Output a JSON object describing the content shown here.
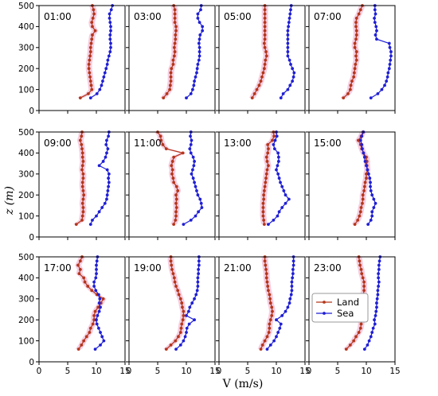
{
  "colors": {
    "land": "#b5361b",
    "sea": "#1f1fd6",
    "land_band": "#f2c6dd"
  },
  "chart_data": {
    "type": "line",
    "xlabel": "V (m/s)",
    "ylabel": "z (m)",
    "xlim": [
      0,
      15
    ],
    "ylim": [
      0,
      500
    ],
    "xticks": [
      0,
      5,
      10,
      15
    ],
    "yticks": [
      0,
      100,
      200,
      300,
      400,
      500
    ],
    "legend": {
      "placement": "inside panel 23:00, center-left",
      "entries": [
        "Land",
        "Sea"
      ]
    },
    "z": [
      60,
      80,
      100,
      120,
      140,
      160,
      180,
      200,
      220,
      240,
      260,
      280,
      300,
      320,
      340,
      360,
      380,
      400,
      420,
      440,
      460,
      480,
      500
    ],
    "panels": [
      {
        "time": "01:00",
        "land": [
          7.2,
          8.6,
          9.2,
          9.1,
          9.0,
          8.9,
          8.8,
          8.7,
          8.7,
          8.8,
          8.9,
          9.0,
          9.0,
          9.1,
          9.2,
          9.3,
          9.8,
          9.3,
          9.2,
          9.4,
          9.6,
          9.5,
          9.3
        ],
        "sea": [
          9.0,
          10.1,
          10.6,
          10.9,
          11.1,
          11.3,
          11.5,
          11.7,
          11.9,
          12.0,
          12.2,
          12.4,
          12.5,
          12.5,
          12.4,
          12.4,
          12.5,
          12.5,
          12.4,
          12.3,
          12.3,
          12.6,
          12.8
        ]
      },
      {
        "time": "03:00",
        "land": [
          6.0,
          6.6,
          7.1,
          7.2,
          7.3,
          7.3,
          7.3,
          7.4,
          7.7,
          7.7,
          7.9,
          8.0,
          7.9,
          8.0,
          8.1,
          8.1,
          8.2,
          8.2,
          8.0,
          8.0,
          8.0,
          8.0,
          7.8
        ],
        "sea": [
          10.0,
          10.8,
          11.1,
          11.3,
          11.4,
          11.6,
          11.8,
          11.9,
          12.0,
          12.2,
          12.3,
          12.3,
          12.3,
          12.2,
          12.3,
          12.4,
          12.8,
          12.8,
          12.3,
          12.0,
          12.0,
          12.5,
          12.6
        ]
      },
      {
        "time": "05:00",
        "land": [
          5.8,
          6.2,
          6.6,
          7.0,
          7.3,
          7.5,
          7.7,
          7.9,
          8.0,
          8.1,
          8.3,
          8.2,
          8.0,
          7.9,
          8.0,
          8.0,
          8.0,
          8.0,
          8.0,
          8.0,
          8.0,
          8.0,
          8.0
        ],
        "sea": [
          10.8,
          11.2,
          12.0,
          12.4,
          12.8,
          13.0,
          13.1,
          12.8,
          12.5,
          12.3,
          12.0,
          12.0,
          12.0,
          12.0,
          12.0,
          12.0,
          12.0,
          12.1,
          12.2,
          12.3,
          12.4,
          12.5,
          12.6
        ]
      },
      {
        "time": "07:00",
        "land": [
          6.0,
          6.8,
          7.2,
          7.3,
          7.5,
          7.8,
          7.9,
          8.0,
          8.1,
          8.3,
          8.2,
          8.3,
          8.0,
          8.0,
          8.2,
          8.3,
          8.3,
          8.2,
          8.2,
          8.3,
          8.7,
          9.0,
          9.3
        ],
        "sea": [
          10.8,
          12.0,
          12.7,
          13.2,
          13.5,
          13.7,
          13.8,
          14.0,
          14.1,
          14.2,
          14.3,
          14.3,
          14.1,
          14.0,
          11.8,
          11.6,
          11.8,
          11.7,
          11.5,
          11.4,
          11.6,
          11.5,
          11.5
        ]
      },
      {
        "time": "09:00",
        "land": [
          6.5,
          7.5,
          7.6,
          7.7,
          7.7,
          7.6,
          7.7,
          7.8,
          7.7,
          7.6,
          7.6,
          7.7,
          7.7,
          7.5,
          7.6,
          7.7,
          7.6,
          7.6,
          7.5,
          7.4,
          7.2,
          7.4,
          7.5
        ],
        "sea": [
          9.0,
          9.3,
          10.0,
          10.5,
          11.0,
          11.5,
          11.8,
          11.9,
          12.0,
          12.1,
          12.2,
          12.1,
          12.2,
          11.9,
          10.5,
          11.2,
          11.6,
          11.8,
          12.0,
          11.7,
          11.8,
          12.1,
          12.2
        ],
        "land_override": true
      },
      {
        "time": "11:00",
        "land": [
          7.8,
          8.1,
          8.2,
          8.2,
          8.3,
          8.2,
          8.3,
          8.2,
          8.5,
          8.3,
          7.8,
          7.7,
          7.5,
          7.6,
          7.4,
          7.6,
          7.8,
          9.4,
          6.5,
          5.9,
          5.6,
          5.5,
          5.0
        ],
        "sea": [
          9.5,
          10.8,
          11.6,
          12.1,
          12.7,
          12.6,
          12.4,
          12.0,
          11.8,
          11.6,
          11.4,
          11.2,
          10.9,
          11.1,
          11.3,
          11.4,
          11.2,
          10.8,
          10.6,
          10.8,
          10.9,
          10.7,
          10.8
        ]
      },
      {
        "time": "13:00",
        "land": [
          7.9,
          7.8,
          7.7,
          7.7,
          7.7,
          7.7,
          7.8,
          7.8,
          7.9,
          8.0,
          8.1,
          8.2,
          8.3,
          8.4,
          8.6,
          8.4,
          8.3,
          8.5,
          8.6,
          8.5,
          9.3,
          9.6,
          9.5
        ],
        "sea": [
          8.6,
          9.5,
          10.2,
          10.5,
          11.0,
          11.6,
          12.2,
          11.6,
          11.3,
          11.0,
          10.7,
          10.5,
          10.3,
          10.0,
          10.2,
          10.4,
          10.4,
          10.3,
          9.7,
          9.5,
          9.8,
          10.1,
          10.0
        ]
      },
      {
        "time": "15:00",
        "land": [
          8.0,
          8.5,
          8.8,
          9.0,
          9.1,
          9.3,
          9.4,
          9.4,
          9.6,
          9.7,
          9.8,
          10.0,
          10.0,
          10.2,
          10.1,
          10.1,
          10.0,
          9.5,
          9.2,
          9.0,
          8.6,
          9.1,
          9.4
        ],
        "sea": [
          10.3,
          10.8,
          11.0,
          11.0,
          11.3,
          11.6,
          11.3,
          11.0,
          10.8,
          10.7,
          10.7,
          10.6,
          10.4,
          10.2,
          10.0,
          9.8,
          9.7,
          9.5,
          9.3,
          9.2,
          9.0,
          9.2,
          9.5
        ]
      },
      {
        "time": "17:00",
        "land": [
          6.9,
          7.4,
          7.8,
          8.3,
          8.8,
          9.0,
          9.4,
          9.6,
          9.6,
          9.8,
          10.3,
          10.8,
          11.2,
          10.1,
          9.2,
          8.5,
          8.0,
          7.8,
          7.0,
          7.2,
          6.8,
          7.2,
          7.5
        ],
        "sea": [
          9.8,
          10.7,
          11.3,
          11.0,
          10.7,
          10.4,
          10.1,
          10.0,
          10.2,
          10.5,
          10.7,
          10.5,
          10.6,
          10.4,
          9.9,
          9.6,
          9.6,
          9.9,
          10.0,
          10.0,
          10.0,
          10.1,
          10.2
        ],
        "sea_override": true
      },
      {
        "time": "19:00",
        "land": [
          6.5,
          7.3,
          8.1,
          8.6,
          9.0,
          9.1,
          9.2,
          9.4,
          9.5,
          9.5,
          9.3,
          9.2,
          9.0,
          8.7,
          8.5,
          8.2,
          8.0,
          7.9,
          7.7,
          7.5,
          7.4,
          7.3,
          7.3
        ],
        "sea": [
          8.2,
          9.0,
          9.5,
          9.8,
          10.0,
          10.1,
          10.5,
          11.4,
          10.0,
          10.4,
          10.6,
          11.0,
          11.4,
          11.7,
          11.9,
          12.0,
          12.0,
          12.0,
          12.1,
          12.1,
          12.2,
          12.2,
          12.2
        ]
      },
      {
        "time": "21:00",
        "land": [
          7.3,
          7.6,
          8.0,
          8.4,
          8.7,
          8.8,
          8.8,
          9.0,
          9.2,
          9.3,
          9.2,
          9.0,
          8.9,
          8.8,
          8.6,
          8.5,
          8.4,
          8.3,
          8.3,
          8.2,
          8.1,
          8.0,
          8.0
        ],
        "sea": [
          8.4,
          9.0,
          9.6,
          10.0,
          10.3,
          10.6,
          10.8,
          10.0,
          11.0,
          11.6,
          12.0,
          12.3,
          12.4,
          12.6,
          12.7,
          12.7,
          12.7,
          12.8,
          12.9,
          12.9,
          13.0,
          13.0,
          13.0
        ]
      },
      {
        "time": "23:00",
        "land": [
          6.5,
          7.2,
          7.8,
          8.2,
          8.7,
          9.0,
          9.1,
          9.2,
          9.4,
          9.5,
          9.5,
          9.5,
          9.5,
          9.5,
          9.6,
          9.6,
          9.6,
          9.4,
          9.2,
          9.1,
          8.9,
          8.8,
          8.7
        ],
        "sea": [
          9.7,
          10.2,
          10.5,
          10.8,
          11.0,
          11.2,
          11.5,
          11.4,
          11.6,
          11.7,
          11.8,
          11.8,
          11.9,
          12.0,
          12.0,
          12.1,
          12.2,
          12.1,
          12.1,
          12.2,
          12.2,
          12.3,
          12.4
        ]
      }
    ]
  }
}
